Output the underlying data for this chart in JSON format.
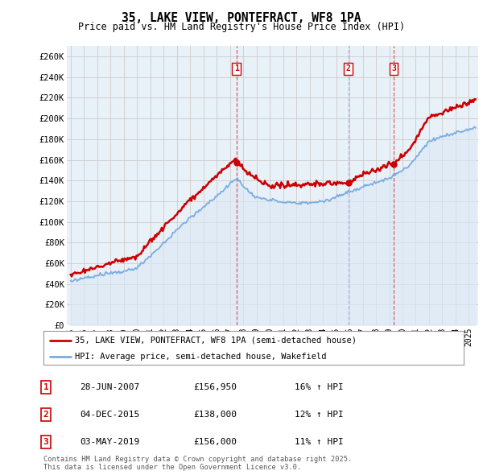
{
  "title": "35, LAKE VIEW, PONTEFRACT, WF8 1PA",
  "subtitle": "Price paid vs. HM Land Registry's House Price Index (HPI)",
  "ylabel_ticks": [
    "£0",
    "£20K",
    "£40K",
    "£60K",
    "£80K",
    "£100K",
    "£120K",
    "£140K",
    "£160K",
    "£180K",
    "£200K",
    "£220K",
    "£240K",
    "£260K"
  ],
  "ytick_values": [
    0,
    20000,
    40000,
    60000,
    80000,
    100000,
    120000,
    140000,
    160000,
    180000,
    200000,
    220000,
    240000,
    260000
  ],
  "ylim": [
    0,
    270000
  ],
  "xlim_start": 1994.7,
  "xlim_end": 2025.7,
  "sale_color": "#cc0000",
  "hpi_color": "#7aade0",
  "hpi_fill_color": "#dce8f5",
  "grid_color": "#cccccc",
  "bg_color": "#e8f0f8",
  "vline1_color": "#dd4444",
  "vline2_color": "#aabbcc",
  "vline3_color": "#dd4444",
  "sales": [
    {
      "date_year": 2007.49,
      "price": 156950,
      "label": "1",
      "vline_color": "#dd4444",
      "vline_style": "--"
    },
    {
      "date_year": 2015.92,
      "price": 138000,
      "label": "2",
      "vline_color": "#aaaacc",
      "vline_style": "--"
    },
    {
      "date_year": 2019.34,
      "price": 156000,
      "label": "3",
      "vline_color": "#dd4444",
      "vline_style": "--"
    }
  ],
  "legend_entry1": "35, LAKE VIEW, PONTEFRACT, WF8 1PA (semi-detached house)",
  "legend_entry2": "HPI: Average price, semi-detached house, Wakefield",
  "table_rows": [
    {
      "num": "1",
      "date": "28-JUN-2007",
      "price": "£156,950",
      "change": "16% ↑ HPI"
    },
    {
      "num": "2",
      "date": "04-DEC-2015",
      "price": "£138,000",
      "change": "12% ↑ HPI"
    },
    {
      "num": "3",
      "date": "03-MAY-2019",
      "price": "£156,000",
      "change": "11% ↑ HPI"
    }
  ],
  "footer": "Contains HM Land Registry data © Crown copyright and database right 2025.\nThis data is licensed under the Open Government Licence v3.0."
}
